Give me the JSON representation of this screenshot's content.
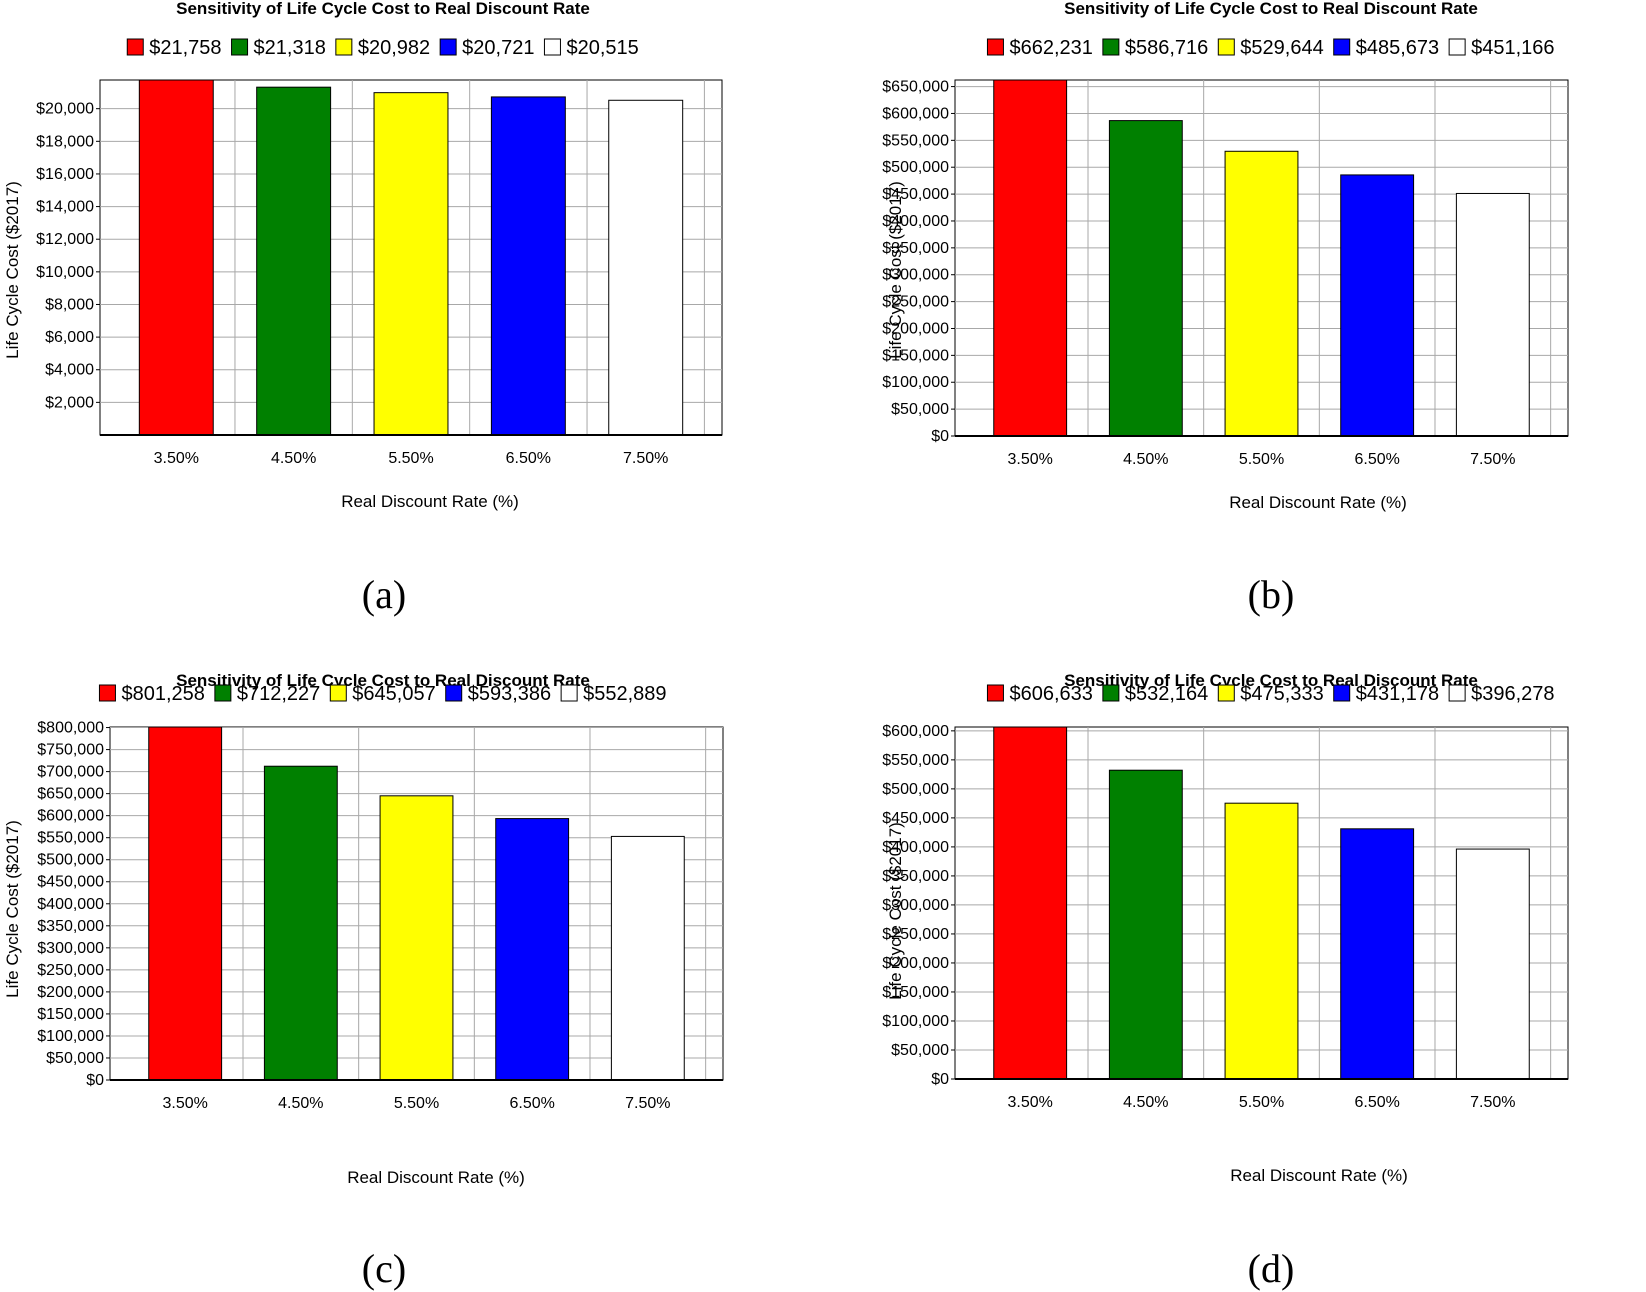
{
  "chart_data": [
    {
      "type": "bar",
      "title": "Sensitivity of Life Cycle Cost to Real Discount Rate",
      "xlabel": "Real Discount Rate (%)",
      "ylabel": "Life Cycle Cost ($2017)",
      "caption": "(a)",
      "categories": [
        "3.50%",
        "4.50%",
        "5.50%",
        "6.50%",
        "7.50%"
      ],
      "values": [
        21758,
        21318,
        20982,
        20721,
        20515
      ],
      "legend": [
        "$21,758",
        "$21,318",
        "$20,982",
        "$20,721",
        "$20,515"
      ],
      "colors": [
        "#ff0000",
        "#008000",
        "#ffff00",
        "#0000ff",
        "#ffffff"
      ],
      "ylim": [
        0,
        21758
      ],
      "yticks": [
        2000,
        4000,
        6000,
        8000,
        10000,
        12000,
        14000,
        16000,
        18000,
        20000
      ],
      "ytick_labels": [
        "$2,000",
        "$4,000",
        "$6,000",
        "$8,000",
        "$10,000",
        "$12,000",
        "$14,000",
        "$16,000",
        "$18,000",
        "$20,000"
      ],
      "legend_position": "top",
      "grid": true
    },
    {
      "type": "bar",
      "title": "Sensitivity of Life Cycle Cost to Real Discount Rate",
      "xlabel": "Real Discount Rate (%)",
      "ylabel": "Life Cycle Cost ($2017)",
      "caption": "(b)",
      "categories": [
        "3.50%",
        "4.50%",
        "5.50%",
        "6.50%",
        "7.50%"
      ],
      "values": [
        662231,
        586716,
        529644,
        485673,
        451166
      ],
      "legend": [
        "$662,231",
        "$586,716",
        "$529,644",
        "$485,673",
        "$451,166"
      ],
      "colors": [
        "#ff0000",
        "#008000",
        "#ffff00",
        "#0000ff",
        "#ffffff"
      ],
      "ylim": [
        0,
        662231
      ],
      "yticks": [
        0,
        50000,
        100000,
        150000,
        200000,
        250000,
        300000,
        350000,
        400000,
        450000,
        500000,
        550000,
        600000,
        650000
      ],
      "ytick_labels": [
        "$0",
        "$50,000",
        "$100,000",
        "$150,000",
        "$200,000",
        "$250,000",
        "$300,000",
        "$350,000",
        "$400,000",
        "$450,000",
        "$500,000",
        "$550,000",
        "$600,000",
        "$650,000"
      ],
      "legend_position": "top",
      "grid": true
    },
    {
      "type": "bar",
      "title": "Sensitivity of Life Cycle Cost to Real Discount Rate",
      "xlabel": "Real Discount Rate (%)",
      "ylabel": "Life Cycle Cost ($2017)",
      "caption": "(c)",
      "categories": [
        "3.50%",
        "4.50%",
        "5.50%",
        "6.50%",
        "7.50%"
      ],
      "values": [
        801258,
        712227,
        645057,
        593386,
        552889
      ],
      "legend": [
        "$801,258",
        "$712,227",
        "$645,057",
        "$593,386",
        "$552,889"
      ],
      "colors": [
        "#ff0000",
        "#008000",
        "#ffff00",
        "#0000ff",
        "#ffffff"
      ],
      "ylim": [
        0,
        801258
      ],
      "yticks": [
        0,
        50000,
        100000,
        150000,
        200000,
        250000,
        300000,
        350000,
        400000,
        450000,
        500000,
        550000,
        600000,
        650000,
        700000,
        750000,
        800000
      ],
      "ytick_labels": [
        "$0",
        "$50,000",
        "$100,000",
        "$150,000",
        "$200,000",
        "$250,000",
        "$300,000",
        "$350,000",
        "$400,000",
        "$450,000",
        "$500,000",
        "$550,000",
        "$600,000",
        "$650,000",
        "$700,000",
        "$750,000",
        "$800,000"
      ],
      "legend_position": "top",
      "grid": true
    },
    {
      "type": "bar",
      "title": "Sensitivity of Life Cycle Cost to Real Discount Rate",
      "xlabel": "Real Discount Rate (%)",
      "ylabel": "Life Cycle Cost ($2017)",
      "caption": "(d)",
      "categories": [
        "3.50%",
        "4.50%",
        "5.50%",
        "6.50%",
        "7.50%"
      ],
      "values": [
        606633,
        532164,
        475333,
        431178,
        396278
      ],
      "legend": [
        "$606,633",
        "$532,164",
        "$475,333",
        "$431,178",
        "$396,278"
      ],
      "colors": [
        "#ff0000",
        "#008000",
        "#ffff00",
        "#0000ff",
        "#ffffff"
      ],
      "ylim": [
        0,
        606633
      ],
      "yticks": [
        0,
        50000,
        100000,
        150000,
        200000,
        250000,
        300000,
        350000,
        400000,
        450000,
        500000,
        550000,
        600000
      ],
      "ytick_labels": [
        "$0",
        "$50,000",
        "$100,000",
        "$150,000",
        "$200,000",
        "$250,000",
        "$300,000",
        "$350,000",
        "$400,000",
        "$450,000",
        "$500,000",
        "$550,000",
        "$600,000"
      ],
      "legend_position": "top",
      "grid": true
    }
  ]
}
